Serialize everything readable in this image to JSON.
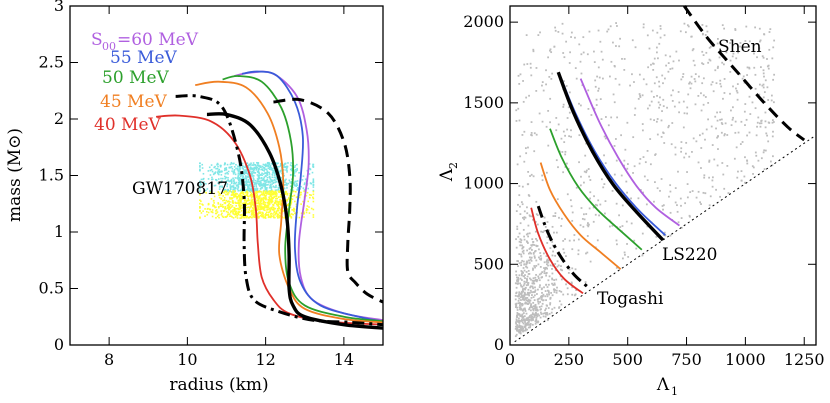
{
  "chart_data": [
    {
      "type": "line",
      "title": "",
      "xlabel": "radius (km)",
      "ylabel": "mass (M⊙)",
      "xlim": [
        7,
        15
      ],
      "ylim": [
        0,
        3
      ],
      "xticks": [
        8,
        10,
        12,
        14
      ],
      "yticks": [
        0,
        0.5,
        1,
        1.5,
        2,
        2.5,
        3
      ],
      "annotations": [
        {
          "id": "gw",
          "text": "GW170817"
        },
        {
          "id": "s00prefix",
          "text": "S"
        },
        {
          "id": "s00sub",
          "text": "00"
        }
      ],
      "posterior_bands": [
        {
          "name": "band-cyan",
          "color": "#7fe6e6",
          "x_range": [
            10.3,
            13.2
          ],
          "y_range": [
            1.36,
            1.62
          ]
        },
        {
          "name": "band-yellow",
          "color": "#ffff33",
          "x_range": [
            10.3,
            13.2
          ],
          "y_range": [
            1.13,
            1.37
          ]
        }
      ],
      "series": [
        {
          "name": "60 MeV",
          "label": "=60 MeV",
          "color": "#b060e0",
          "style": "solid",
          "x": [
            11.2,
            11.6,
            12.2,
            12.8,
            13.05,
            13.1,
            13.0,
            12.85,
            12.9,
            13.2,
            14.0,
            15.0
          ],
          "y": [
            2.38,
            2.41,
            2.4,
            2.2,
            1.9,
            1.6,
            1.3,
            0.9,
            0.6,
            0.4,
            0.28,
            0.22
          ]
        },
        {
          "name": "55 MeV",
          "label": "55 MeV",
          "color": "#3a5bd9",
          "style": "solid",
          "x": [
            11.4,
            11.8,
            12.3,
            12.75,
            12.95,
            12.9,
            12.8,
            12.75,
            12.9,
            13.4,
            14.5,
            15.0
          ],
          "y": [
            2.4,
            2.42,
            2.38,
            2.15,
            1.85,
            1.5,
            1.2,
            0.85,
            0.55,
            0.35,
            0.24,
            0.21
          ]
        },
        {
          "name": "50 MeV",
          "label": "50 MeV",
          "color": "#2ca02c",
          "style": "solid",
          "x": [
            10.9,
            11.3,
            11.9,
            12.4,
            12.65,
            12.7,
            12.6,
            12.5,
            12.6,
            13.0,
            14.0,
            15.0
          ],
          "y": [
            2.35,
            2.38,
            2.33,
            2.1,
            1.8,
            1.5,
            1.2,
            0.85,
            0.55,
            0.35,
            0.25,
            0.21
          ]
        },
        {
          "name": "45 MeV",
          "label": "45 MeV",
          "color": "#f07f22",
          "style": "solid",
          "x": [
            10.2,
            10.8,
            11.5,
            12.05,
            12.35,
            12.45,
            12.4,
            12.35,
            12.6,
            13.0,
            14.0,
            15.0
          ],
          "y": [
            2.3,
            2.33,
            2.28,
            2.05,
            1.75,
            1.45,
            1.1,
            0.8,
            0.5,
            0.32,
            0.23,
            0.2
          ]
        },
        {
          "name": "40 MeV",
          "label": "40 MeV",
          "color": "#e0302a",
          "style": "solid",
          "x": [
            9.2,
            9.8,
            10.6,
            11.2,
            11.6,
            11.75,
            11.8,
            11.9,
            12.2,
            12.6,
            13.5,
            15.0
          ],
          "y": [
            2.02,
            2.03,
            1.98,
            1.8,
            1.5,
            1.2,
            0.9,
            0.6,
            0.4,
            0.28,
            0.21,
            0.18
          ]
        },
        {
          "name": "black-solid",
          "label": "",
          "color": "#000000",
          "style": "solid-thick",
          "x": [
            10.5,
            11.0,
            11.6,
            12.1,
            12.4,
            12.55,
            12.6,
            12.6,
            12.7,
            13.0,
            14.0,
            15.0
          ],
          "y": [
            2.04,
            2.04,
            1.95,
            1.7,
            1.4,
            1.1,
            0.8,
            0.5,
            0.35,
            0.25,
            0.18,
            0.15
          ]
        },
        {
          "name": "black-dashdot",
          "label": "",
          "color": "#000000",
          "style": "dashdot",
          "x": [
            9.7,
            10.3,
            10.9,
            11.3,
            11.45,
            11.45,
            11.5,
            11.7,
            12.3,
            13.2,
            14.2,
            15.0
          ],
          "y": [
            2.2,
            2.2,
            2.1,
            1.7,
            1.3,
            0.9,
            0.6,
            0.4,
            0.3,
            0.22,
            0.2,
            0.18
          ]
        },
        {
          "name": "black-dashed",
          "label": "",
          "color": "#000000",
          "style": "dashed",
          "x": [
            12.2,
            12.9,
            13.6,
            14.0,
            14.15,
            14.15,
            14.1,
            14.1,
            14.3,
            14.6,
            15.0
          ],
          "y": [
            2.15,
            2.17,
            2.05,
            1.8,
            1.5,
            1.2,
            0.9,
            0.65,
            0.55,
            0.45,
            0.38
          ]
        }
      ]
    },
    {
      "type": "scatter",
      "title": "",
      "xlabel": "Λ",
      "xlabel_sub": "1",
      "ylabel": "Λ",
      "ylabel_sub": "2",
      "xlim": [
        0,
        1300
      ],
      "ylim": [
        0,
        2100
      ],
      "xticks": [
        0,
        250,
        500,
        750,
        1000,
        1250
      ],
      "yticks": [
        0,
        500,
        1000,
        1500,
        2000
      ],
      "annotations": [
        {
          "id": "shen",
          "text": "Shen"
        },
        {
          "id": "ls220",
          "text": "LS220"
        },
        {
          "id": "togashi",
          "text": "Togashi"
        }
      ],
      "scatter_color": "#bdbdbd",
      "series": [
        {
          "name": "60 MeV",
          "color": "#b060e0",
          "style": "solid",
          "x": [
            300,
            380,
            460,
            540,
            620,
            720
          ],
          "y": [
            1650,
            1380,
            1160,
            980,
            850,
            740
          ]
        },
        {
          "name": "55 MeV",
          "color": "#3a5bd9",
          "style": "solid",
          "x": [
            215,
            280,
            360,
            450,
            550,
            660
          ],
          "y": [
            1660,
            1430,
            1200,
            1000,
            830,
            680
          ]
        },
        {
          "name": "black-solid",
          "color": "#000000",
          "style": "solid-thick",
          "x": [
            205,
            270,
            350,
            440,
            540,
            650
          ],
          "y": [
            1690,
            1440,
            1200,
            990,
            820,
            650
          ]
        },
        {
          "name": "50 MeV",
          "color": "#2ca02c",
          "style": "solid",
          "x": [
            170,
            220,
            290,
            370,
            460,
            560
          ],
          "y": [
            1340,
            1160,
            980,
            840,
            720,
            590
          ]
        },
        {
          "name": "45 MeV",
          "color": "#f07f22",
          "style": "solid",
          "x": [
            130,
            170,
            230,
            300,
            380,
            470
          ],
          "y": [
            1130,
            960,
            810,
            680,
            580,
            470
          ]
        },
        {
          "name": "black-dashdot",
          "color": "#000000",
          "style": "dashdot",
          "x": [
            120,
            160,
            210,
            270,
            330
          ],
          "y": [
            860,
            700,
            560,
            440,
            360
          ]
        },
        {
          "name": "40 MeV",
          "color": "#e0302a",
          "style": "solid",
          "x": [
            90,
            120,
            170,
            230,
            310
          ],
          "y": [
            850,
            690,
            530,
            410,
            320
          ]
        },
        {
          "name": "black-dashed",
          "color": "#000000",
          "style": "dashed",
          "x": [
            740,
            840,
            960,
            1080,
            1180,
            1250
          ],
          "y": [
            2100,
            1900,
            1700,
            1500,
            1350,
            1270
          ]
        },
        {
          "name": "equal-lambda",
          "color": "#000000",
          "style": "dotted",
          "x": [
            20,
            1290
          ],
          "y": [
            20,
            1290
          ]
        }
      ]
    }
  ]
}
